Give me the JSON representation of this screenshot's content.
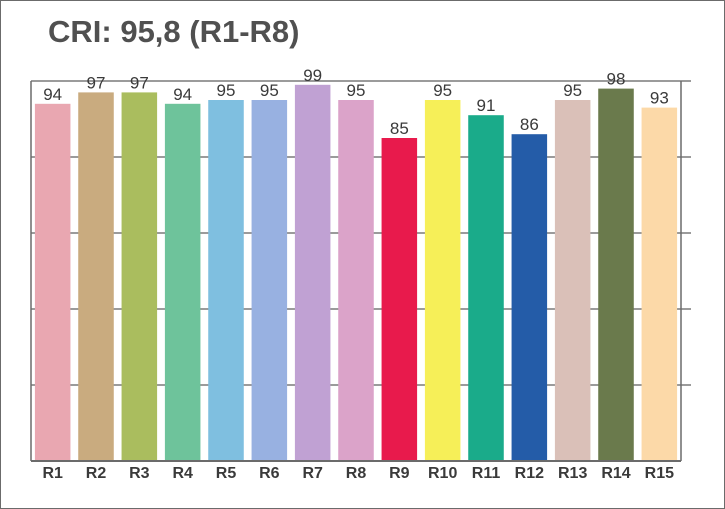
{
  "chart_data": {
    "type": "bar",
    "title": "CRI: 95,8 (R1-R8)",
    "categories": [
      "R1",
      "R2",
      "R3",
      "R4",
      "R5",
      "R6",
      "R7",
      "R8",
      "R9",
      "R10",
      "R11",
      "R12",
      "R13",
      "R14",
      "R15"
    ],
    "values": [
      94,
      97,
      97,
      94,
      95,
      95,
      99,
      95,
      85,
      95,
      91,
      86,
      95,
      98,
      93
    ],
    "value_labels": [
      "94",
      "97",
      "97",
      "94",
      "95",
      "95",
      "99",
      "95",
      "85",
      "95",
      "91",
      "86",
      "95",
      "98",
      "93"
    ],
    "colors": [
      "#e9a7b1",
      "#c9ab7f",
      "#aabd5e",
      "#6ec39b",
      "#7fbfe0",
      "#98b1e1",
      "#c0a1d3",
      "#dba3c9",
      "#e81a4c",
      "#f6ef58",
      "#1aab8a",
      "#245ca8",
      "#dac0b8",
      "#6a7a4c",
      "#fcd9a8"
    ],
    "ylim": [
      0,
      100
    ],
    "grid": true,
    "legend": "none"
  }
}
